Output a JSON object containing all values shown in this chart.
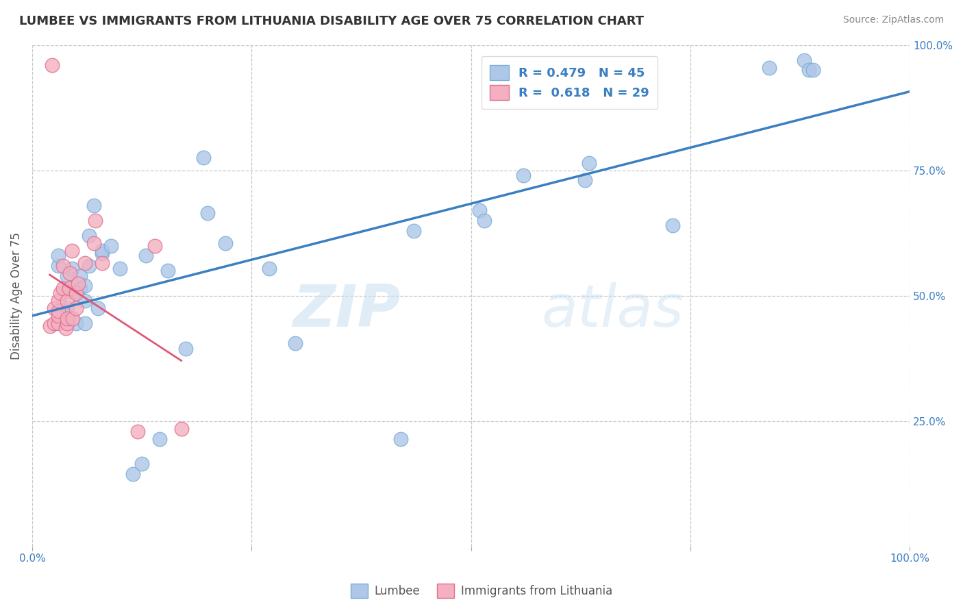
{
  "title": "LUMBEE VS IMMIGRANTS FROM LITHUANIA DISABILITY AGE OVER 75 CORRELATION CHART",
  "source": "Source: ZipAtlas.com",
  "ylabel": "Disability Age Over 75",
  "xlim": [
    0,
    1.0
  ],
  "ylim": [
    0,
    1.0
  ],
  "watermark_zip": "ZIP",
  "watermark_atlas": "atlas",
  "legend_label1": "Lumbee",
  "legend_label2": "Immigrants from Lithuania",
  "r1": 0.479,
  "n1": 45,
  "r2": 0.618,
  "n2": 29,
  "blue_color": "#aec6e8",
  "pink_color": "#f4afc0",
  "line_blue": "#3a7fc1",
  "line_pink": "#e05878",
  "lumbee_x": [
    0.03,
    0.03,
    0.04,
    0.04,
    0.04,
    0.04,
    0.045,
    0.05,
    0.05,
    0.055,
    0.055,
    0.06,
    0.06,
    0.06,
    0.065,
    0.065,
    0.07,
    0.075,
    0.08,
    0.08,
    0.09,
    0.1,
    0.115,
    0.125,
    0.13,
    0.145,
    0.155,
    0.175,
    0.195,
    0.2,
    0.22,
    0.27,
    0.3,
    0.42,
    0.435,
    0.51,
    0.515,
    0.56,
    0.63,
    0.635,
    0.73,
    0.84,
    0.88,
    0.885,
    0.89
  ],
  "lumbee_y": [
    0.56,
    0.58,
    0.46,
    0.475,
    0.51,
    0.54,
    0.555,
    0.445,
    0.51,
    0.515,
    0.54,
    0.445,
    0.49,
    0.52,
    0.56,
    0.62,
    0.68,
    0.475,
    0.585,
    0.59,
    0.6,
    0.555,
    0.145,
    0.165,
    0.58,
    0.215,
    0.55,
    0.395,
    0.775,
    0.665,
    0.605,
    0.555,
    0.405,
    0.215,
    0.63,
    0.67,
    0.65,
    0.74,
    0.73,
    0.765,
    0.64,
    0.955,
    0.97,
    0.95,
    0.95
  ],
  "lith_x": [
    0.02,
    0.025,
    0.025,
    0.03,
    0.03,
    0.03,
    0.03,
    0.032,
    0.035,
    0.035,
    0.038,
    0.04,
    0.04,
    0.04,
    0.042,
    0.043,
    0.045,
    0.046,
    0.05,
    0.05,
    0.052,
    0.06,
    0.07,
    0.072,
    0.08,
    0.12,
    0.14,
    0.17,
    0.023
  ],
  "lith_y": [
    0.44,
    0.445,
    0.475,
    0.445,
    0.46,
    0.47,
    0.49,
    0.505,
    0.515,
    0.56,
    0.435,
    0.445,
    0.455,
    0.49,
    0.515,
    0.545,
    0.59,
    0.455,
    0.475,
    0.505,
    0.525,
    0.565,
    0.605,
    0.65,
    0.565,
    0.23,
    0.6,
    0.235,
    0.96
  ]
}
